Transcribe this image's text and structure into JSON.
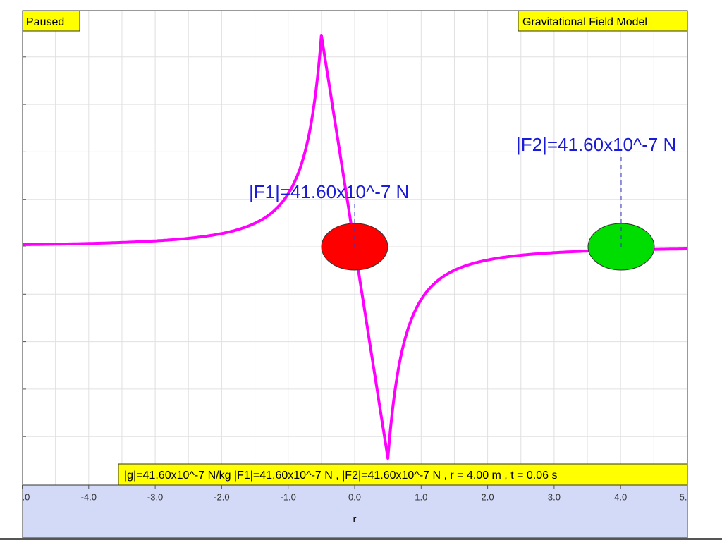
{
  "status": "Paused",
  "title": "Gravitational Field Model",
  "labels": {
    "f1": "|F1|=41.60x10^-7 N",
    "f2": "|F2|=41.60x10^-7 N"
  },
  "readout": "|g|=41.60x10^-7 N/kg |F1|=41.60x10^-7 N , |F2|=41.60x10^-7 N , r = 4.00 m , t = 0.06 s",
  "x_axis": {
    "label": "r",
    "ticks": [
      ".0",
      "-4.0",
      "-3.0",
      "-2.0",
      "-1.0",
      "0.0",
      "1.0",
      "2.0",
      "3.0",
      "4.0",
      "5."
    ]
  }
}
